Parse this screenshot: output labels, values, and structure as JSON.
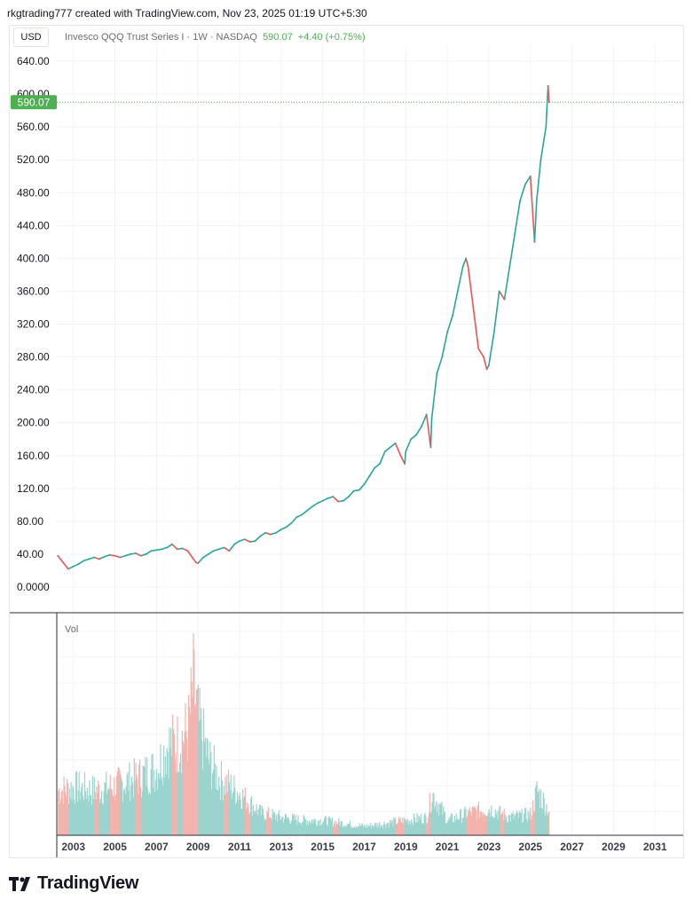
{
  "header": {
    "attribution": "rkgtrading777 created with TradingView.com, Nov 23, 2025 01:19 UTC+5:30"
  },
  "toolbar": {
    "currency": "USD"
  },
  "legend": {
    "symbol": "Invesco QQQ Trust Series I · 1W · NASDAQ",
    "price": "590.07",
    "change": "+4.40 (+0.75%)"
  },
  "price_badge": "590.07",
  "volume_pane": {
    "label": "Vol"
  },
  "footer": {
    "brand": "TradingView"
  },
  "colors": {
    "up": "#26a69a",
    "down": "#ef5350",
    "price_badge": "#4caf50",
    "grid": "#f0f3fa",
    "axis_text": "#131722",
    "volume_up": "#9ad4ce",
    "volume_down": "#f4b2ad"
  },
  "chart_data": [
    {
      "type": "line",
      "title": "Invesco QQQ Trust Series I · 1W · NASDAQ",
      "xlabel": "",
      "ylabel": "",
      "ylim": [
        -40,
        680
      ],
      "yticks": [
        "0.0000",
        "40.00",
        "80.00",
        "120.00",
        "160.00",
        "200.00",
        "240.00",
        "280.00",
        "320.00",
        "360.00",
        "400.00",
        "440.00",
        "480.00",
        "520.00",
        "560.00",
        "600.00",
        "640.00"
      ],
      "xticks": [
        "2003",
        "2005",
        "2007",
        "2009",
        "2011",
        "2013",
        "2015",
        "2017",
        "2019",
        "2021",
        "2023",
        "2025",
        "2027",
        "2029",
        "2031"
      ],
      "xlim": [
        2002.2,
        2032.4
      ],
      "last_price": 590.07,
      "grid": true,
      "series": [
        {
          "x": [
            2002.25,
            2002.5,
            2002.75,
            2003.0,
            2003.25,
            2003.5,
            2003.75,
            2004.0,
            2004.25,
            2004.5,
            2004.75,
            2005.0,
            2005.25,
            2005.5,
            2005.75,
            2006.0,
            2006.25,
            2006.5,
            2006.75,
            2007.0,
            2007.25,
            2007.5,
            2007.75,
            2008.0,
            2008.25,
            2008.5,
            2008.75,
            2008.9,
            2009.0,
            2009.25,
            2009.5,
            2009.75,
            2010.0,
            2010.25,
            2010.5,
            2010.75,
            2011.0,
            2011.25,
            2011.5,
            2011.75,
            2012.0,
            2012.25,
            2012.5,
            2012.75,
            2013.0,
            2013.25,
            2013.5,
            2013.75,
            2014.0,
            2014.25,
            2014.5,
            2014.75,
            2015.0,
            2015.25,
            2015.5,
            2015.75,
            2016.0,
            2016.25,
            2016.5,
            2016.75,
            2017.0,
            2017.25,
            2017.5,
            2017.75,
            2018.0,
            2018.25,
            2018.5,
            2018.75,
            2018.95,
            2019.0,
            2019.25,
            2019.5,
            2019.75,
            2020.0,
            2020.2,
            2020.25,
            2020.5,
            2020.75,
            2021.0,
            2021.25,
            2021.5,
            2021.75,
            2021.9,
            2022.0,
            2022.25,
            2022.5,
            2022.75,
            2022.9,
            2023.0,
            2023.25,
            2023.5,
            2023.75,
            2024.0,
            2024.25,
            2024.5,
            2024.75,
            2025.0,
            2025.2,
            2025.3,
            2025.5,
            2025.75,
            2025.85,
            2025.9
          ],
          "values": [
            38,
            30,
            22,
            25,
            28,
            32,
            34,
            36,
            34,
            37,
            39,
            38,
            36,
            38,
            40,
            41,
            38,
            40,
            44,
            45,
            46,
            48,
            52,
            46,
            47,
            44,
            35,
            30,
            29,
            36,
            40,
            44,
            46,
            48,
            44,
            52,
            56,
            58,
            55,
            56,
            62,
            66,
            64,
            66,
            70,
            73,
            78,
            85,
            88,
            93,
            98,
            102,
            105,
            108,
            110,
            104,
            105,
            110,
            117,
            118,
            125,
            135,
            145,
            150,
            165,
            170,
            175,
            160,
            150,
            165,
            180,
            185,
            195,
            210,
            170,
            205,
            260,
            280,
            310,
            330,
            360,
            390,
            400,
            390,
            340,
            290,
            280,
            265,
            270,
            310,
            360,
            350,
            390,
            430,
            470,
            490,
            500,
            420,
            470,
            520,
            560,
            610,
            590
          ]
        }
      ]
    },
    {
      "type": "bar",
      "title": "Vol",
      "xlabel": "",
      "ylabel": "",
      "grid": true,
      "series": [
        {
          "x": [
            2002.25,
            2003.0,
            2004.0,
            2005.0,
            2006.0,
            2007.0,
            2007.5,
            2008.0,
            2008.5,
            2008.75,
            2009.0,
            2009.5,
            2010.0,
            2011.0,
            2012.0,
            2013.0,
            2014.0,
            2015.0,
            2016.0,
            2017.0,
            2018.0,
            2019.0,
            2020.0,
            2020.25,
            2021.0,
            2022.0,
            2023.0,
            2024.0,
            2025.0,
            2025.3,
            2025.9
          ],
          "values": [
            0.3,
            0.32,
            0.3,
            0.33,
            0.38,
            0.45,
            0.6,
            0.62,
            0.7,
            1.0,
            0.75,
            0.5,
            0.38,
            0.28,
            0.15,
            0.12,
            0.1,
            0.1,
            0.08,
            0.06,
            0.08,
            0.1,
            0.12,
            0.28,
            0.1,
            0.15,
            0.18,
            0.12,
            0.14,
            0.3,
            0.16
          ]
        }
      ]
    }
  ]
}
